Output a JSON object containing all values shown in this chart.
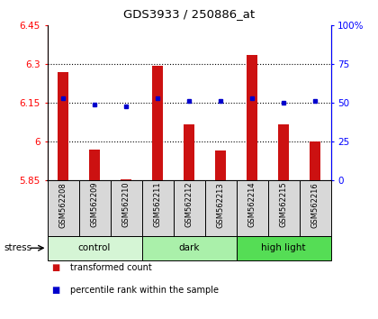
{
  "title": "GDS3933 / 250886_at",
  "samples": [
    "GSM562208",
    "GSM562209",
    "GSM562210",
    "GSM562211",
    "GSM562212",
    "GSM562213",
    "GSM562214",
    "GSM562215",
    "GSM562216"
  ],
  "bar_values": [
    6.27,
    5.97,
    5.855,
    6.295,
    6.065,
    5.965,
    6.335,
    6.065,
    6.0
  ],
  "percentile_values": [
    53,
    49,
    48,
    53,
    51,
    51,
    53,
    50,
    51
  ],
  "bar_bottom": 5.85,
  "ylim_left": [
    5.85,
    6.45
  ],
  "ylim_right": [
    0,
    100
  ],
  "yticks_left": [
    5.85,
    6.0,
    6.15,
    6.3,
    6.45
  ],
  "yticks_right": [
    0,
    25,
    50,
    75,
    100
  ],
  "ytick_labels_left": [
    "5.85",
    "6",
    "6.15",
    "6.3",
    "6.45"
  ],
  "ytick_labels_right": [
    "0",
    "25",
    "50",
    "75",
    "100%"
  ],
  "hlines": [
    6.0,
    6.15,
    6.3
  ],
  "groups": [
    {
      "label": "control",
      "start": 0,
      "end": 3,
      "color": "#d5f5d5"
    },
    {
      "label": "dark",
      "start": 3,
      "end": 6,
      "color": "#aaf0aa"
    },
    {
      "label": "high light",
      "start": 6,
      "end": 9,
      "color": "#55dd55"
    }
  ],
  "bar_color": "#cc1111",
  "marker_color": "#0000cc",
  "sample_box_color": "#d8d8d8",
  "stress_label": "stress",
  "legend_items": [
    {
      "color": "#cc1111",
      "label": "transformed count"
    },
    {
      "color": "#0000cc",
      "label": "percentile rank within the sample"
    }
  ]
}
